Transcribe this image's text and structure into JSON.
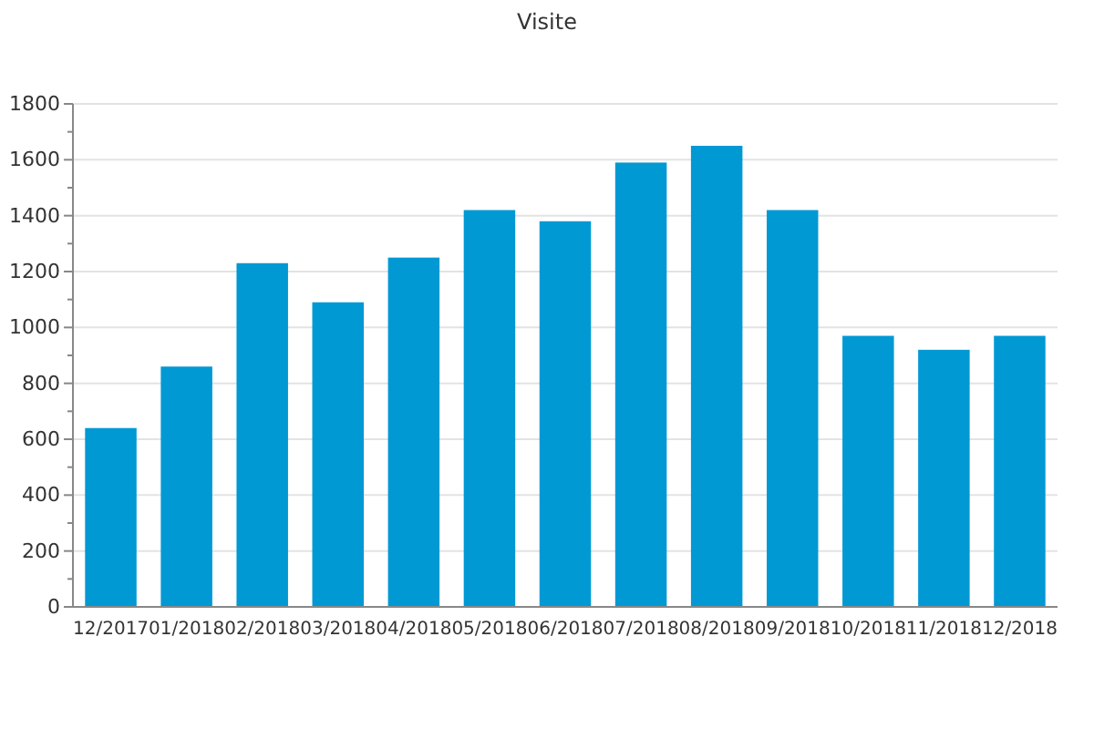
{
  "chart_data": {
    "type": "bar",
    "title": "Visite",
    "categories": [
      "12/2017",
      "01/2018",
      "02/2018",
      "03/2018",
      "04/2018",
      "05/2018",
      "06/2018",
      "07/2018",
      "08/2018",
      "09/2018",
      "10/2018",
      "11/2018",
      "12/2018"
    ],
    "values": [
      640,
      860,
      1230,
      1090,
      1250,
      1420,
      1380,
      1590,
      1650,
      1420,
      970,
      920,
      970
    ],
    "color": "#0099d4",
    "ylim": [
      0,
      1800
    ],
    "yticks": [
      0,
      {
        "value": 100,
        "label": null
      },
      200,
      {
        "value": 300,
        "label": null
      },
      400,
      {
        "value": 500,
        "label": null
      },
      600,
      {
        "value": 700,
        "label": null
      },
      800,
      {
        "value": 900,
        "label": null
      },
      1000,
      {
        "value": 1100,
        "label": null
      },
      1200,
      {
        "value": 1300,
        "label": null
      },
      1400,
      {
        "value": 1500,
        "label": null
      },
      1600,
      {
        "value": 1700,
        "label": null
      },
      1800
    ],
    "grid": "y"
  }
}
